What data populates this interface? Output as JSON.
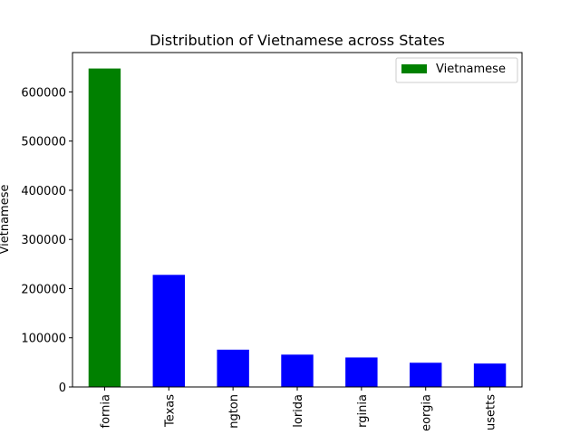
{
  "chart_data": {
    "type": "bar",
    "title": "Distribution of Vietnamese across States",
    "xlabel": "",
    "ylabel": "Vietnamese",
    "categories": [
      "California",
      "Texas",
      "Washington",
      "Florida",
      "Virginia",
      "Georgia",
      "Massachusetts"
    ],
    "tick_labels_visible": [
      "fornia",
      "Texas",
      "ngton",
      "lorida",
      "rginia",
      "eorgia",
      "usetts"
    ],
    "values": [
      647589,
      227968,
      75843,
      65772,
      59984,
      49264,
      47636
    ],
    "bar_colors": [
      "#008000",
      "#0000ff",
      "#0000ff",
      "#0000ff",
      "#0000ff",
      "#0000ff",
      "#0000ff"
    ],
    "ylim": [
      0,
      680000
    ],
    "yticks": [
      0,
      100000,
      200000,
      300000,
      400000,
      500000,
      600000
    ],
    "ytick_labels": [
      "0",
      "100000",
      "200000",
      "300000",
      "400000",
      "500000",
      "600000"
    ],
    "grid": false,
    "legend": {
      "placement": "top-right",
      "entries": [
        {
          "label": "Vietnamese",
          "color": "#008000"
        }
      ]
    }
  }
}
